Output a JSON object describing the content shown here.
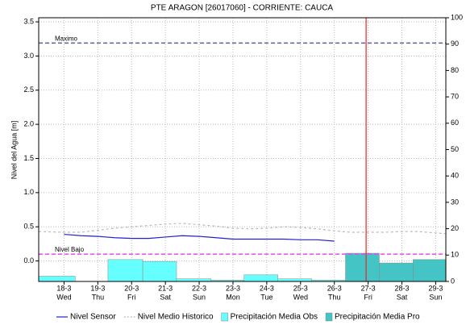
{
  "chart_data": {
    "type": "line",
    "title": "PTE ARAGON   [26017060] - CORRIENTE: CAUCA",
    "ylabel": "Nivel del Agua [m]",
    "xlim": [
      17.25,
      29.3
    ],
    "xticks": [
      {
        "value": 18,
        "label": "18-3"
      },
      {
        "value": 19,
        "label": "19-3"
      },
      {
        "value": 20,
        "label": "20-3"
      },
      {
        "value": 21,
        "label": "21-3"
      },
      {
        "value": 22,
        "label": "22-3"
      },
      {
        "value": 23,
        "label": "23-3"
      },
      {
        "value": 24,
        "label": "24-3"
      },
      {
        "value": 25,
        "label": "25-3"
      },
      {
        "value": 26,
        "label": "26-3"
      },
      {
        "value": 27,
        "label": "27-3"
      },
      {
        "value": 28,
        "label": "28-3"
      },
      {
        "value": 29,
        "label": "29-3"
      }
    ],
    "weekdays": [
      "Wed",
      "Thu",
      "Fri",
      "Sat",
      "Sun",
      "Mon",
      "Tue",
      "Wed",
      "Thu",
      "Fri",
      "Sat",
      "Sun"
    ],
    "ylim": [
      -0.3,
      3.56
    ],
    "yticks": [
      {
        "value": 0,
        "label": "0.0"
      },
      0.5,
      {
        "value": 1,
        "label": "1.0"
      },
      1.5,
      {
        "value": 2,
        "label": "2.0"
      },
      2.5,
      {
        "value": 3,
        "label": "3.0"
      },
      3.5
    ],
    "y2lim": [
      0,
      100
    ],
    "y2ticks": [
      0,
      10,
      20,
      30,
      40,
      50,
      60,
      70,
      80,
      90,
      100
    ],
    "grid": true,
    "series": [
      {
        "name": "Nivel Sensor",
        "color": "#2222cc",
        "style": "solid",
        "x": [
          18,
          18.5,
          19,
          19.5,
          20,
          20.5,
          21,
          21.5,
          22,
          22.5,
          23,
          23.5,
          24,
          24.5,
          25,
          25.5,
          26
        ],
        "values": [
          0.39,
          0.37,
          0.36,
          0.34,
          0.33,
          0.33,
          0.35,
          0.37,
          0.36,
          0.34,
          0.32,
          0.32,
          0.32,
          0.32,
          0.31,
          0.31,
          0.29
        ]
      },
      {
        "name": "Nivel Medio Historico",
        "color": "#bbbbbb",
        "style": "dashed",
        "x": [
          17.25,
          18,
          18.5,
          19,
          19.5,
          20,
          20.5,
          21,
          21.5,
          22,
          22.5,
          23,
          23.5,
          24,
          24.5,
          25,
          25.5,
          26,
          26.5,
          27,
          27.5,
          28,
          28.5,
          29,
          29.3
        ],
        "values": [
          0.43,
          0.42,
          0.42,
          0.45,
          0.48,
          0.5,
          0.52,
          0.54,
          0.55,
          0.53,
          0.51,
          0.48,
          0.47,
          0.48,
          0.5,
          0.49,
          0.47,
          0.44,
          0.42,
          0.42,
          0.42,
          0.43,
          0.43,
          0.41,
          0.4
        ]
      },
      {
        "name": "Precipitación Media Obs",
        "color": "#66ffff",
        "axis": "y2",
        "kind": "bar",
        "bins": [
          17.25,
          18.33,
          19.3,
          20.33,
          21.33,
          22.35,
          23.33,
          24.33,
          25.33,
          26.33
        ],
        "values": [
          2,
          0,
          8.3,
          7.6,
          1,
          0.5,
          2.5,
          1,
          0.5
        ]
      },
      {
        "name": "Precipitación Media Pro",
        "color": "#44c4c4",
        "axis": "y2",
        "kind": "bar",
        "bins": [
          26.33,
          27.33,
          28.33,
          29.3
        ],
        "values": [
          10.7,
          7,
          8.3
        ]
      }
    ],
    "reference_lines": [
      {
        "label": "Maximo",
        "value": 3.19,
        "color": "#556688"
      },
      {
        "label": "Nivel Bajo",
        "value": 0.1,
        "color": "#ee44ee"
      }
    ],
    "current_x": 26.94,
    "current_color": "#ee2222"
  }
}
